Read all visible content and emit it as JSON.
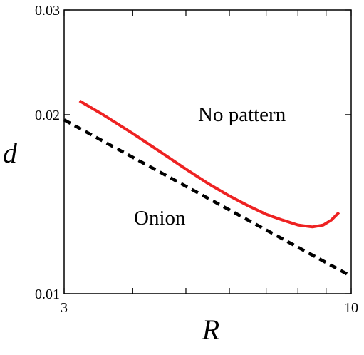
{
  "chart_data": {
    "type": "line",
    "xlabel": "R",
    "ylabel": "d",
    "xscale": "log",
    "yscale": "log",
    "xlim": [
      3,
      10
    ],
    "ylim": [
      0.01,
      0.03
    ],
    "x_ticks": [
      3,
      4,
      5,
      6,
      7,
      8,
      9,
      10
    ],
    "x_tick_labels": [
      "3",
      "10"
    ],
    "y_ticks": [
      0.01,
      0.02,
      0.03
    ],
    "y_tick_labels": [
      "0.01",
      "0.02",
      "0.03"
    ],
    "grid": false,
    "legend": "none",
    "annotations": [
      {
        "text": "No pattern",
        "x": 6.6,
        "y": 0.02
      },
      {
        "text": "Onion",
        "x": 4.3,
        "y": 0.0136
      }
    ],
    "series": [
      {
        "style": "solid",
        "color": "#ee2222",
        "x": [
          3.2,
          3.5,
          4.0,
          4.5,
          5.0,
          5.5,
          6.0,
          6.5,
          7.0,
          7.5,
          8.0,
          8.5,
          8.9,
          9.2,
          9.5
        ],
        "y": [
          0.0211,
          0.0201,
          0.0186,
          0.0173,
          0.0162,
          0.0153,
          0.0146,
          0.01405,
          0.0136,
          0.0133,
          0.01305,
          0.01295,
          0.01305,
          0.0133,
          0.0137
        ]
      },
      {
        "style": "dashed",
        "color": "#000000",
        "x": [
          3.0,
          10.0
        ],
        "y": [
          0.0196,
          0.0107
        ]
      }
    ]
  }
}
